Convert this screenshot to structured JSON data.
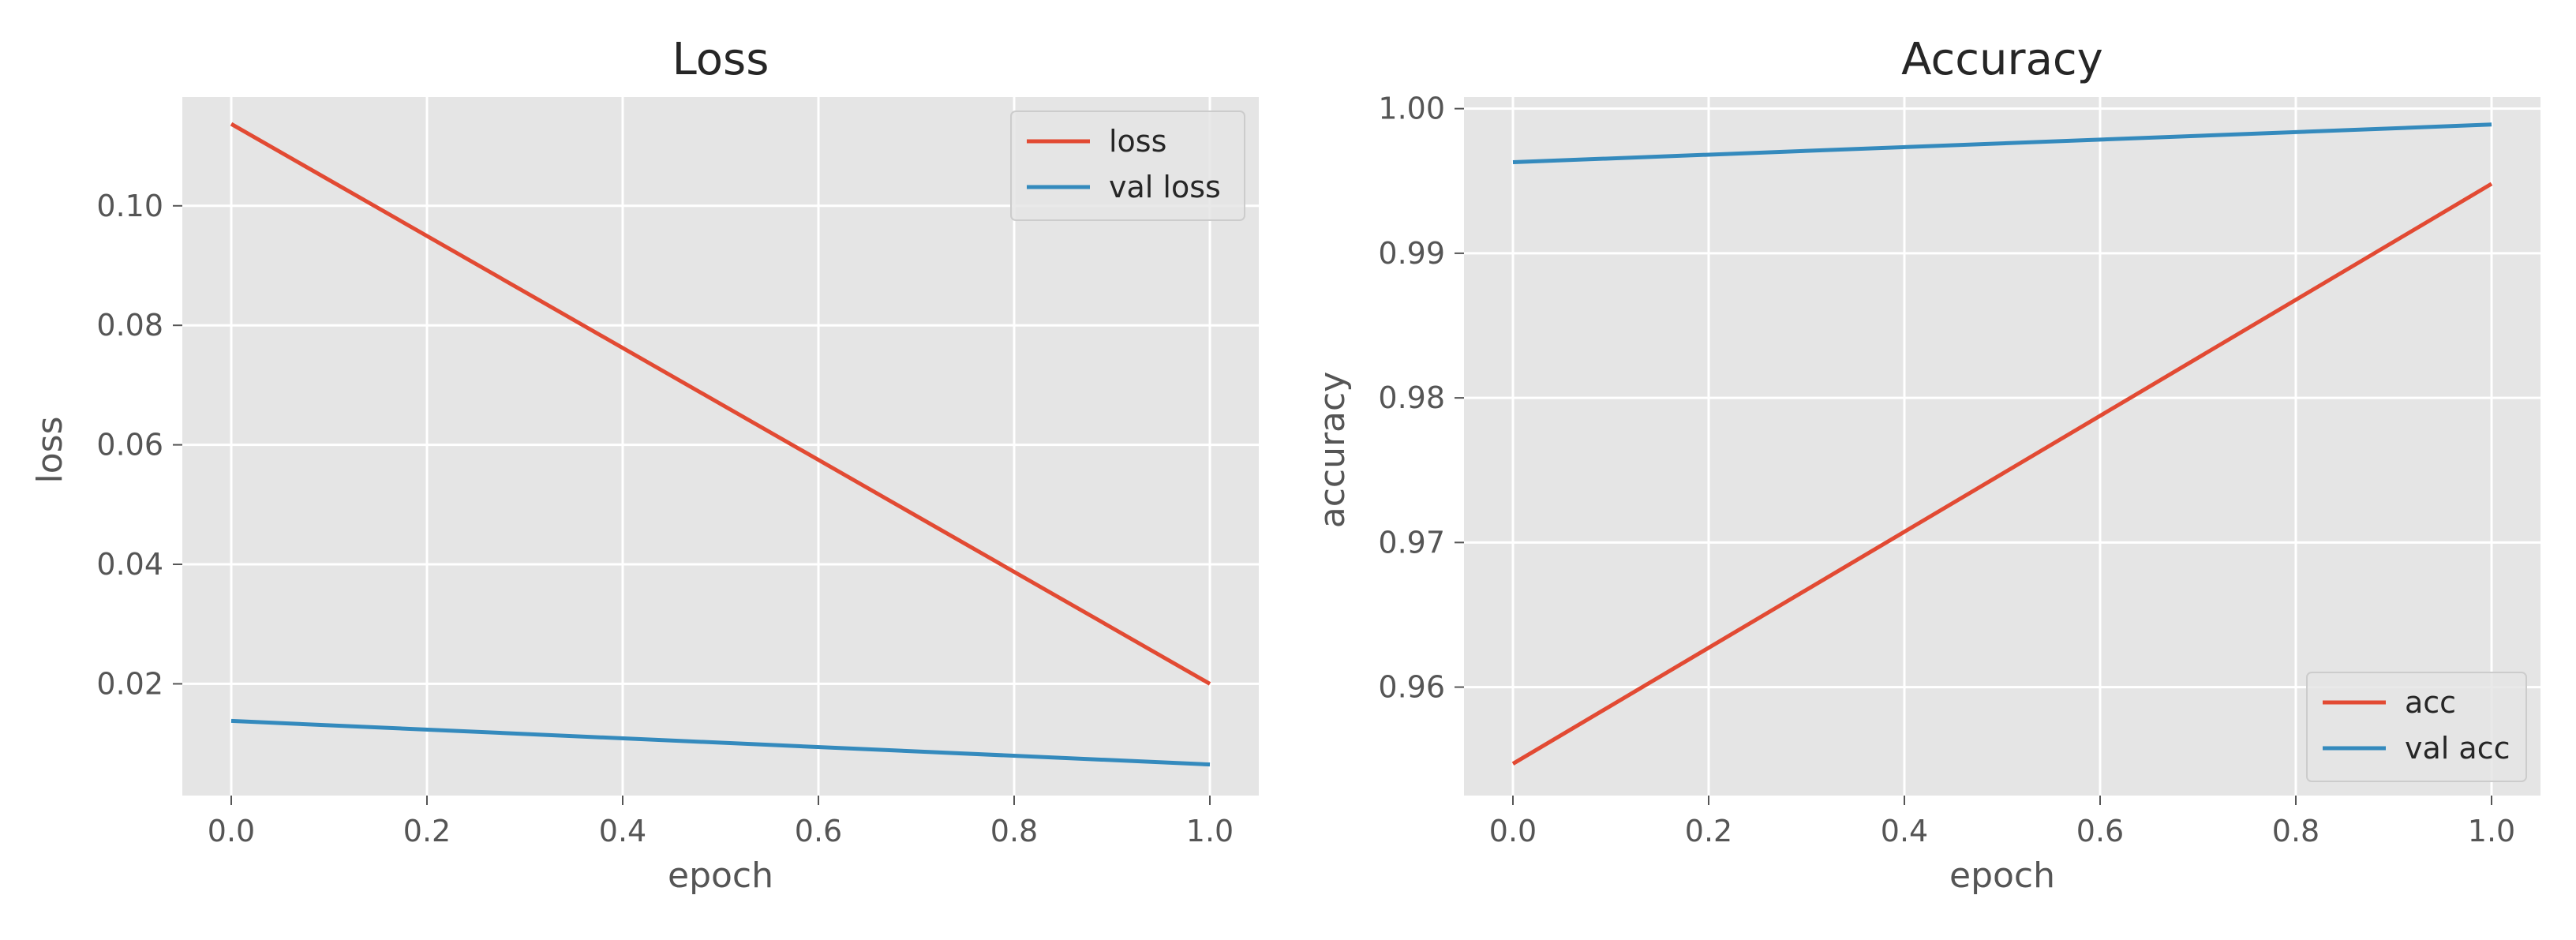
{
  "chart_data": [
    {
      "type": "line",
      "title": "Loss",
      "xlabel": "epoch",
      "ylabel": "loss",
      "x": [
        0.0,
        1.0
      ],
      "xlim": [
        -0.05,
        1.05
      ],
      "ylim": [
        0.0013,
        0.1182
      ],
      "xticks": [
        0.0,
        0.2,
        0.4,
        0.6,
        0.8,
        1.0
      ],
      "xtick_labels": [
        "0.0",
        "0.2",
        "0.4",
        "0.6",
        "0.8",
        "1.0"
      ],
      "yticks": [
        0.02,
        0.04,
        0.06,
        0.08,
        0.1
      ],
      "ytick_labels": [
        "0.02",
        "0.04",
        "0.06",
        "0.08",
        "0.10"
      ],
      "grid": true,
      "legend_position": "top-right",
      "series": [
        {
          "name": "loss",
          "color": "#E24A33",
          "values": [
            0.1137,
            0.02
          ]
        },
        {
          "name": "val loss",
          "color": "#348ABD",
          "values": [
            0.0138,
            0.0065
          ]
        }
      ]
    },
    {
      "type": "line",
      "title": "Accuracy",
      "xlabel": "epoch",
      "ylabel": "accuracy",
      "x": [
        0.0,
        1.0
      ],
      "xlim": [
        -0.05,
        1.05
      ],
      "ylim": [
        0.9525,
        1.0008
      ],
      "xticks": [
        0.0,
        0.2,
        0.4,
        0.6,
        0.8,
        1.0
      ],
      "xtick_labels": [
        "0.0",
        "0.2",
        "0.4",
        "0.6",
        "0.8",
        "1.0"
      ],
      "yticks": [
        0.96,
        0.97,
        0.98,
        0.99,
        1.0
      ],
      "ytick_labels": [
        "0.96",
        "0.97",
        "0.98",
        "0.99",
        "1.00"
      ],
      "grid": true,
      "legend_position": "bottom-right",
      "series": [
        {
          "name": "acc",
          "color": "#E24A33",
          "values": [
            0.9547,
            0.9948
          ]
        },
        {
          "name": "val acc",
          "color": "#348ABD",
          "values": [
            0.9963,
            0.9989
          ]
        }
      ]
    }
  ]
}
